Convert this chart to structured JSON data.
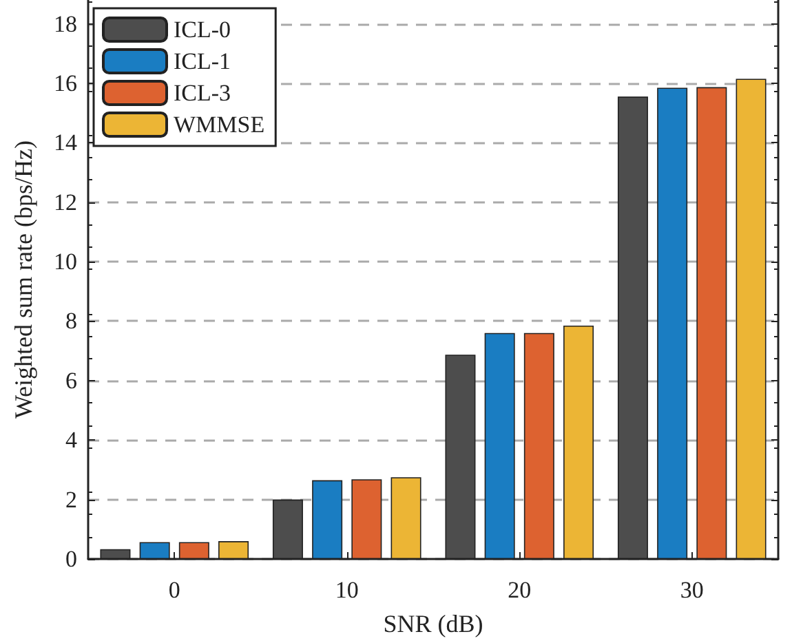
{
  "chart_data": {
    "type": "bar",
    "xlabel": "SNR (dB)",
    "ylabel": "Weighted sum rate (bps/Hz)",
    "categories": [
      "0",
      "10",
      "20",
      "30"
    ],
    "series": [
      {
        "name": "ICL-0",
        "color": "#4d4d4d",
        "values": [
          0.33,
          2.0,
          6.87,
          15.55
        ]
      },
      {
        "name": "ICL-1",
        "color": "#1a7dc2",
        "values": [
          0.57,
          2.65,
          7.6,
          15.85
        ]
      },
      {
        "name": "ICL-3",
        "color": "#dd6230",
        "values": [
          0.57,
          2.68,
          7.6,
          15.87
        ]
      },
      {
        "name": "WMMSE",
        "color": "#ecb535",
        "values": [
          0.6,
          2.75,
          7.85,
          16.15
        ]
      }
    ],
    "ylim": [
      0,
      18.8
    ],
    "yticks": [
      0,
      2,
      4,
      6,
      8,
      10,
      12,
      14,
      16,
      18
    ],
    "grid": "y",
    "legend": "top left"
  }
}
